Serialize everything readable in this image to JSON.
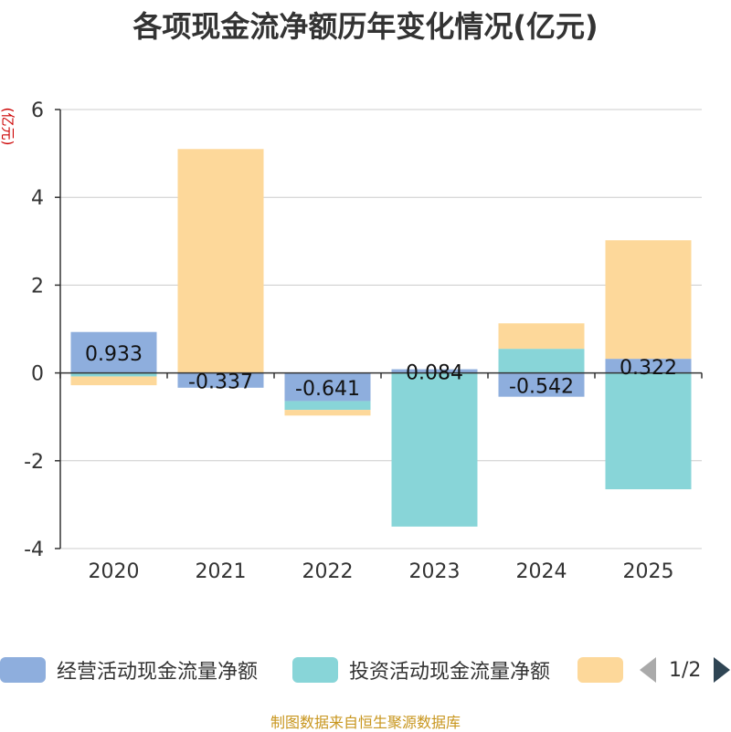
{
  "title": "各项现金流净额历年变化情况(亿元)",
  "unit_label": "(亿元)",
  "footer": "制图数据来自恒生聚源数据库",
  "legend_pager": "1/2",
  "colors": {
    "operating": "#8eaedd",
    "investing": "#88d5d8",
    "financing": "#fdd89a"
  },
  "chart_data": {
    "type": "bar",
    "stacked": true,
    "categories": [
      "2020",
      "2021",
      "2022",
      "2023",
      "2024",
      "2025"
    ],
    "ylim": [
      -4,
      6
    ],
    "yticks": [
      -4,
      -2,
      0,
      2,
      4,
      6
    ],
    "series": [
      {
        "name": "经营活动现金流量净额",
        "key": "operating",
        "values": [
          0.933,
          -0.337,
          -0.641,
          0.084,
          -0.542,
          0.322
        ],
        "labels": [
          "0.933",
          "-0.337",
          "-0.641",
          "0.084",
          "-0.542",
          "0.322"
        ]
      },
      {
        "name": "投资活动现金流量净额",
        "key": "investing",
        "values": [
          -0.08,
          0,
          -0.2,
          -3.5,
          0.55,
          -2.65
        ]
      },
      {
        "name": "",
        "key": "financing",
        "values": [
          -0.2,
          5.1,
          -0.13,
          0,
          0.58,
          2.7
        ]
      }
    ]
  }
}
